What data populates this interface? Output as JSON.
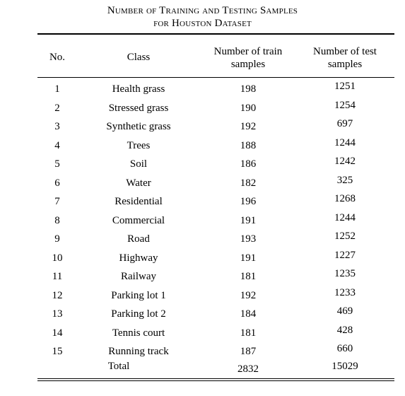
{
  "table": {
    "caption_line1": "Number of Training and Testing Samples",
    "caption_line2": "for Houston Dataset",
    "headers": {
      "no": "No.",
      "class": "Class",
      "train": [
        "Number of train",
        "samples"
      ],
      "test": [
        "Number of test",
        "samples"
      ]
    },
    "rows": [
      {
        "no": "1",
        "class": "Health grass",
        "train": "198",
        "test": "1251"
      },
      {
        "no": "2",
        "class": "Stressed grass",
        "train": "190",
        "test": "1254"
      },
      {
        "no": "3",
        "class": "Synthetic grass",
        "train": "192",
        "test": "697"
      },
      {
        "no": "4",
        "class": "Trees",
        "train": "188",
        "test": "1244"
      },
      {
        "no": "5",
        "class": "Soil",
        "train": "186",
        "test": "1242"
      },
      {
        "no": "6",
        "class": "Water",
        "train": "182",
        "test": "325"
      },
      {
        "no": "7",
        "class": "Residential",
        "train": "196",
        "test": "1268"
      },
      {
        "no": "8",
        "class": "Commercial",
        "train": "191",
        "test": "1244"
      },
      {
        "no": "9",
        "class": "Road",
        "train": "193",
        "test": "1252"
      },
      {
        "no": "10",
        "class": "Highway",
        "train": "191",
        "test": "1227"
      },
      {
        "no": "11",
        "class": "Railway",
        "train": "181",
        "test": "1235"
      },
      {
        "no": "12",
        "class": "Parking lot 1",
        "train": "192",
        "test": "1233"
      },
      {
        "no": "13",
        "class": "Parking lot 2",
        "train": "184",
        "test": "469"
      },
      {
        "no": "14",
        "class": "Tennis court",
        "train": "181",
        "test": "428"
      },
      {
        "no": "15",
        "class": "Running track",
        "train": "187",
        "test": "660"
      }
    ],
    "total": {
      "label": "Total",
      "train": "2832",
      "test": "15029"
    }
  }
}
